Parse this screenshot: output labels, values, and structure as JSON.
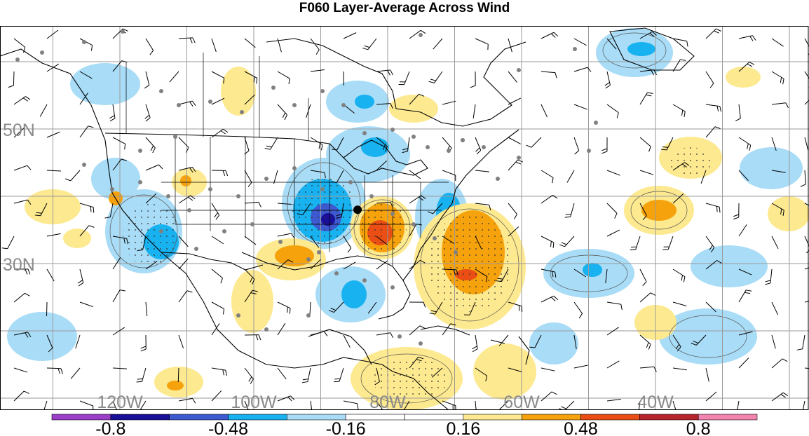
{
  "title": "F060 Layer-Average Across Wind",
  "map": {
    "lat_labels": [
      "50N",
      "30N"
    ],
    "lon_labels": [
      "120W",
      "100W",
      "80W",
      "60W",
      "40W"
    ],
    "marker": {
      "lon": -84.5,
      "lat": 38.0,
      "color": "#000000"
    }
  },
  "colorbar": {
    "colors": [
      "#9b3fc9",
      "#1a0f99",
      "#3e5ad0",
      "#18b2f0",
      "#a8dcf7",
      "#ffffff",
      "#ffffff",
      "#fde98f",
      "#f5a20c",
      "#eb4e14",
      "#b8262d",
      "#f285b0"
    ],
    "tick_labels": [
      "-0.8",
      "-0.48",
      "-0.16",
      "0.16",
      "0.48",
      "0.8"
    ]
  },
  "colors": {
    "strong_negative": "#1a0f99",
    "negative": "#18b2f0",
    "weak_negative": "#a8dcf7",
    "weak_positive": "#fde98f",
    "positive": "#f5a20c",
    "strong_positive": "#eb4e14",
    "grid": "#9a9a9a",
    "station_dot": "#808080"
  }
}
